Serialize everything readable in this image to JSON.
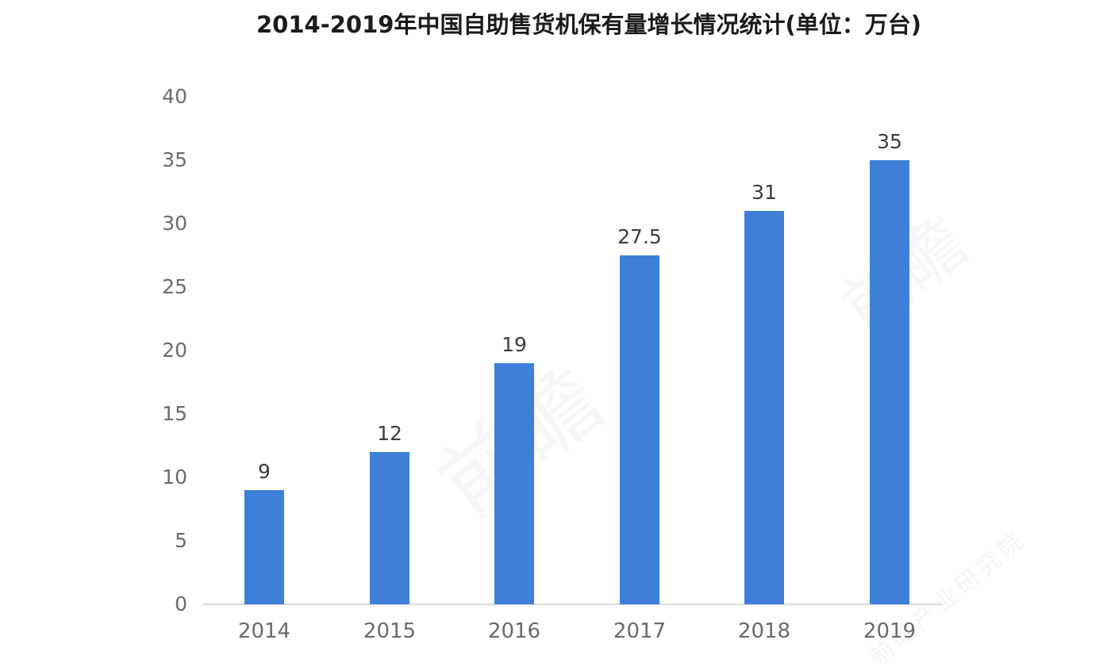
{
  "title": "2014-2019年中国自助售货机保有量增长情况统计(单位：万台)",
  "chart_data": {
    "type": "bar",
    "title": "2014-2019年中国自助售货机保有量增长情况统计(单位：万台)",
    "categories": [
      "2014",
      "2015",
      "2016",
      "2017",
      "2018",
      "2019"
    ],
    "values": [
      9,
      12,
      19,
      27.5,
      31,
      35
    ],
    "value_labels": [
      "9",
      "12",
      "19",
      "27.5",
      "31",
      "35"
    ],
    "xlabel": "",
    "ylabel": "",
    "ylim": [
      0,
      40
    ],
    "yticks": [
      0,
      5,
      10,
      15,
      20,
      25,
      30,
      35,
      40
    ],
    "grid": "off",
    "legend": "none",
    "bar_color": "#3e7fd9",
    "axis_line_color": "#dcdcdc",
    "tick_label_color": "#6b6b6b",
    "value_label_color": "#3d3d3d",
    "title_color": "#1b1b1b",
    "background_color": "#ffffff"
  },
  "watermarks": [
    {
      "text": "前瞻"
    },
    {
      "text": "前瞻"
    },
    {
      "text": "前瞻产业研究院"
    }
  ]
}
